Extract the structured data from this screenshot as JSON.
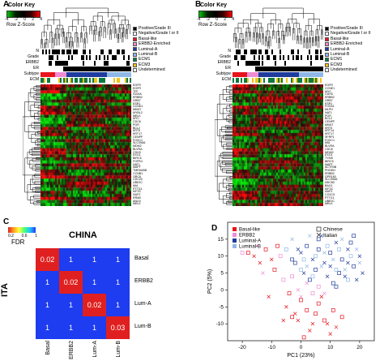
{
  "panels": {
    "a": {
      "label": "A",
      "color_key_title": "Color Key",
      "color_key_ticks": [
        "-4",
        "-2",
        "0",
        "2",
        "4"
      ],
      "color_key_axis": "Row Z-Score",
      "row_labels": [
        "N",
        "Grade",
        "ERBB2",
        "ER",
        "Subtype",
        "ECM"
      ],
      "legend": [
        "Positive/Grade III",
        "Negative/Grade I or II",
        "Basal-like",
        "ERBB2-Enriched",
        "Luminal-A",
        "Luminal-B",
        "ECM1",
        "ECM3",
        "Undetermined"
      ],
      "genes": [
        "EGFR",
        "EGFR",
        "TFF",
        "S100A",
        "ERBB2",
        "GRB7",
        "ESR1",
        "CCND1",
        "MKI67",
        "MYBL2",
        "MELK",
        "MYC",
        "CDC6",
        "PGR",
        "BCL2",
        "KRT5",
        "KRT17",
        "CENPF",
        "FOXC1",
        "SLC39A6",
        "MDM2",
        "BLVRA",
        "CDH3",
        "EXO1",
        "BIRC5",
        "FGFR4",
        "NAT1",
        "MAPT",
        "TMEM45B",
        "CCNB1",
        "ORC6",
        "CDC20",
        "UBE2C",
        "MIA",
        "PTTG1",
        "KIF2C",
        "NUF2",
        "RRM2",
        "ANLN",
        "MELK"
      ]
    },
    "b": {
      "label": "B",
      "color_key_title": "Color Key",
      "color_key_ticks": [
        "-4",
        "-2",
        "0",
        "2",
        "4"
      ],
      "color_key_axis": "Row Z-Score",
      "row_labels": [
        "N",
        "Grade",
        "ERBB2",
        "ER",
        "Subtype",
        "ECM"
      ],
      "legend": [
        "Positive/Grade III",
        "Negative/Grade I or II",
        "Basal-like",
        "ERBB2-Enriched",
        "Luminal-A",
        "Luminal-B",
        "ECM1",
        "ECM3",
        "Undetermined"
      ],
      "genes": [
        "EGFR",
        "CCNE1",
        "MYC",
        "CDH3",
        "ERBB2",
        "GRB7",
        "ESR1",
        "FOXA1",
        "MLPH",
        "NAT1",
        "PGR",
        "BCL2",
        "CENPF",
        "MKI67",
        "KRT5",
        "KRT14",
        "KRT17",
        "SFRP1",
        "FOXC1",
        "MIA",
        "BLVRA",
        "CDC6",
        "MDM2",
        "EXO1",
        "TYMS",
        "BIRC5",
        "MAPT",
        "ACTR3B",
        "PHGDH",
        "ERBB2",
        "GPR160",
        "SLC39A6",
        "NDC80",
        "BAG1",
        "KIF2C",
        "NUF2",
        "CXXC5",
        "PTTG1",
        "UBE2C",
        "MELK"
      ]
    },
    "c": {
      "label": "C",
      "scale_ticks": [
        "0.2",
        "0.6",
        "1"
      ],
      "scale_title": "FDR",
      "col_title": "CHINA",
      "row_title": "ITA",
      "rows": [
        "Basal",
        "ERBB2",
        "Lum-A",
        "Lum-B"
      ],
      "cols": [
        "Basal",
        "ERBB2",
        "Lum-A",
        "Lum-B"
      ],
      "values": [
        [
          "0.02",
          "1",
          "1",
          "1"
        ],
        [
          "1",
          "0.02",
          "1",
          "1"
        ],
        [
          "1",
          "1",
          "0.02",
          "1"
        ],
        [
          "1",
          "1",
          "1",
          "0.03"
        ]
      ]
    },
    "d": {
      "label": "D",
      "legend_subtypes": [
        "Basal-like",
        "ERBB2",
        "Luminal-A",
        "Luminal-B"
      ],
      "legend_cohorts": [
        "Chinese",
        "Italian"
      ]
    }
  },
  "colors": {
    "positive": "#000000",
    "negative": "#ffffff",
    "basal": "#e8141c",
    "erbb2": "#f08bd3",
    "luma": "#1f3c9c",
    "lumb": "#8fb8e6",
    "ecm1": "#0b7a3e",
    "ecm3": "#f0c419",
    "undetermined": "#ffffff",
    "fdr_low": "#e02020",
    "fdr_high": "#1e3cf0"
  },
  "chart_data": {
    "type": "scatter",
    "title": "",
    "xlabel": "PC1 (23%)",
    "ylabel": "PC2 (5%)",
    "xlim": [
      -25,
      25
    ],
    "ylim": [
      -15,
      20
    ],
    "xticks": [
      -20,
      -10,
      0,
      10,
      20
    ],
    "yticks": [
      -10,
      -5,
      0,
      5,
      10,
      15
    ],
    "series": [
      {
        "name": "Basal-like",
        "color": "#e8141c",
        "points": [
          [
            -18,
            11
          ],
          [
            -16,
            10
          ],
          [
            -12,
            12
          ],
          [
            -10,
            9
          ],
          [
            -8,
            13
          ],
          [
            -14,
            8
          ],
          [
            -9,
            6
          ],
          [
            -5,
            -5
          ],
          [
            -3,
            -8
          ],
          [
            -1,
            -9
          ],
          [
            2,
            -6
          ],
          [
            4,
            -10
          ],
          [
            0,
            -3
          ],
          [
            -2,
            -7
          ],
          [
            6,
            -4
          ],
          [
            3,
            -12
          ],
          [
            8,
            -9
          ],
          [
            10,
            -13
          ],
          [
            1,
            -14
          ],
          [
            -6,
            -9
          ],
          [
            5,
            -7
          ],
          [
            7,
            -2
          ],
          [
            11,
            -6
          ],
          [
            12,
            -11
          ],
          [
            14,
            -8
          ],
          [
            -11,
            -2
          ],
          [
            -4,
            -1
          ],
          [
            9,
            -10
          ]
        ]
      },
      {
        "name": "ERBB2",
        "color": "#f08bd3",
        "points": [
          [
            -20,
            11
          ],
          [
            -15,
            13
          ],
          [
            -7,
            10
          ],
          [
            -13,
            5
          ],
          [
            -6,
            3
          ],
          [
            2,
            2
          ],
          [
            4,
            -1
          ],
          [
            -1,
            0
          ],
          [
            6,
            1
          ],
          [
            8,
            -1
          ],
          [
            -3,
            4
          ],
          [
            0,
            -2
          ]
        ]
      },
      {
        "name": "Luminal-A",
        "color": "#1f3c9c",
        "points": [
          [
            -2,
            8
          ],
          [
            0,
            11
          ],
          [
            2,
            13
          ],
          [
            4,
            9
          ],
          [
            6,
            12
          ],
          [
            8,
            8
          ],
          [
            10,
            11
          ],
          [
            12,
            14
          ],
          [
            14,
            9
          ],
          [
            16,
            12
          ],
          [
            18,
            7
          ],
          [
            20,
            10
          ],
          [
            13,
            5
          ],
          [
            9,
            4
          ],
          [
            5,
            6
          ],
          [
            1,
            5
          ],
          [
            -3,
            9
          ],
          [
            7,
            16
          ],
          [
            11,
            2
          ],
          [
            15,
            4
          ],
          [
            17,
            14
          ],
          [
            19,
            3
          ],
          [
            3,
            3
          ],
          [
            -1,
            12
          ],
          [
            6,
            15
          ],
          [
            10,
            7
          ],
          [
            12,
            1
          ],
          [
            16,
            8
          ],
          [
            18,
            16
          ],
          [
            21,
            5
          ]
        ]
      },
      {
        "name": "Luminal-B",
        "color": "#8fb8e6",
        "points": [
          [
            -5,
            12
          ],
          [
            -3,
            15
          ],
          [
            1,
            9
          ],
          [
            3,
            16
          ],
          [
            5,
            10
          ],
          [
            7,
            7
          ],
          [
            9,
            13
          ],
          [
            11,
            9
          ],
          [
            13,
            12
          ],
          [
            15,
            6
          ],
          [
            17,
            10
          ],
          [
            19,
            12
          ],
          [
            0,
            6
          ],
          [
            2,
            7
          ],
          [
            4,
            4
          ],
          [
            8,
            11
          ],
          [
            12,
            6
          ],
          [
            14,
            15
          ],
          [
            16,
            3
          ],
          [
            20,
            8
          ]
        ]
      }
    ]
  }
}
